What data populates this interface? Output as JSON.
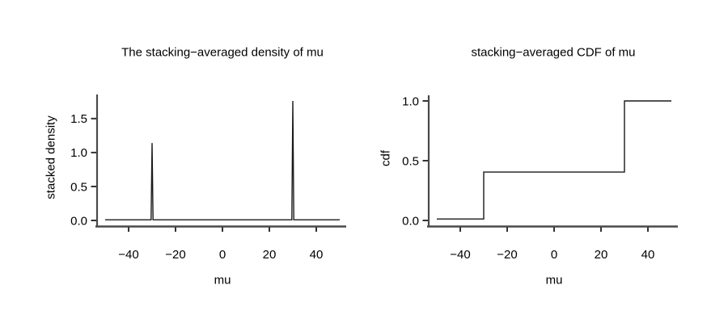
{
  "figure": {
    "background": "#ffffff",
    "text_color": "#000000",
    "axis_color": "#4a4a4a",
    "tick_color": "#333333",
    "line_color": "#1a1a1a"
  },
  "chart_data": [
    {
      "type": "line",
      "title": "The stacking−averaged density of mu",
      "xlabel": "mu",
      "ylabel": "stacked density",
      "xlim": [
        -50,
        50
      ],
      "ylim": [
        0,
        1.76
      ],
      "xticks": [
        -40,
        -20,
        0,
        20,
        40
      ],
      "xtick_labels": [
        "−40",
        "−20",
        "0",
        "20",
        "40"
      ],
      "yticks": [
        0,
        0.5,
        1,
        1.5
      ],
      "ytick_labels": [
        "0.0",
        "0.5",
        "1.0",
        "1.5"
      ],
      "grid": false,
      "legend": null,
      "points": [
        [
          -50,
          0.01
        ],
        [
          -30.4,
          0.01
        ],
        [
          -30,
          1.14
        ],
        [
          -29.6,
          0.01
        ],
        [
          29.6,
          0.01
        ],
        [
          30,
          1.76
        ],
        [
          30.4,
          0.01
        ],
        [
          50,
          0.01
        ]
      ]
    },
    {
      "type": "line",
      "title": "stacking−averaged CDF of mu",
      "xlabel": "mu",
      "ylabel": "cdf",
      "xlim": [
        -50,
        50
      ],
      "ylim": [
        0,
        1
      ],
      "xticks": [
        -40,
        -20,
        0,
        20,
        40
      ],
      "xtick_labels": [
        "−40",
        "−20",
        "0",
        "20",
        "40"
      ],
      "yticks": [
        0,
        0.5,
        1
      ],
      "ytick_labels": [
        "0.0",
        "0.5",
        "1.0"
      ],
      "grid": false,
      "legend": null,
      "points": [
        [
          -50,
          0.012
        ],
        [
          -30,
          0.012
        ],
        [
          -30,
          0.405
        ],
        [
          30,
          0.405
        ],
        [
          30,
          1
        ],
        [
          50,
          1
        ]
      ]
    }
  ]
}
